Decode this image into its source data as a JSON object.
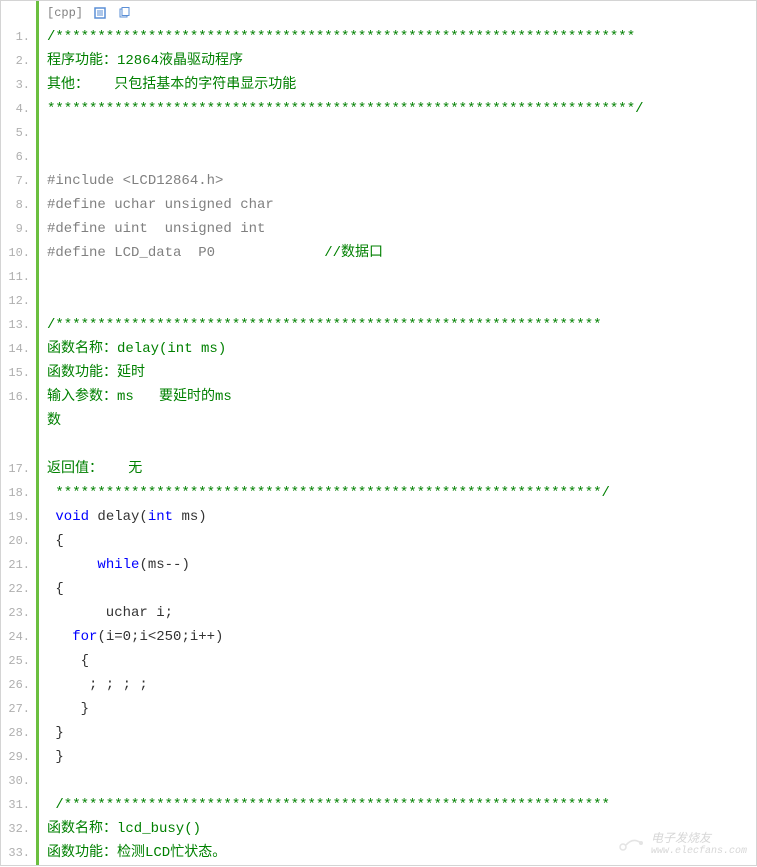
{
  "header": {
    "lang": "[cpp]"
  },
  "gutter": {
    "start": 1,
    "end": 33
  },
  "lines": [
    {
      "n": 1,
      "segs": [
        {
          "cls": "comment",
          "t": "/*********************************************************************"
        }
      ]
    },
    {
      "n": 2,
      "segs": [
        {
          "cls": "comment",
          "t": "程序功能：12864液晶驱动程序"
        }
      ]
    },
    {
      "n": 3,
      "segs": [
        {
          "cls": "comment",
          "t": "其他：   只包括基本的字符串显示功能"
        }
      ]
    },
    {
      "n": 4,
      "segs": [
        {
          "cls": "comment",
          "t": "**********************************************************************/"
        }
      ]
    },
    {
      "n": 5,
      "segs": [
        {
          "cls": "",
          "t": " "
        }
      ]
    },
    {
      "n": 6,
      "segs": [
        {
          "cls": "",
          "t": " "
        }
      ]
    },
    {
      "n": 7,
      "segs": [
        {
          "cls": "preprocessor",
          "t": "#include <LCD12864.h>"
        }
      ]
    },
    {
      "n": 8,
      "segs": [
        {
          "cls": "preprocessor",
          "t": "#define uchar unsigned char"
        }
      ]
    },
    {
      "n": 9,
      "segs": [
        {
          "cls": "preprocessor",
          "t": "#define uint  unsigned int"
        }
      ]
    },
    {
      "n": 10,
      "segs": [
        {
          "cls": "preprocessor",
          "t": "#define LCD_data  P0             "
        },
        {
          "cls": "comment",
          "t": "//数据口"
        }
      ]
    },
    {
      "n": 11,
      "segs": [
        {
          "cls": "",
          "t": " "
        }
      ]
    },
    {
      "n": 12,
      "segs": [
        {
          "cls": "",
          "t": " "
        }
      ]
    },
    {
      "n": 13,
      "segs": [
        {
          "cls": "comment",
          "t": "/*****************************************************************"
        }
      ]
    },
    {
      "n": 14,
      "segs": [
        {
          "cls": "comment",
          "t": "函数名称：delay(int ms)"
        }
      ]
    },
    {
      "n": 15,
      "segs": [
        {
          "cls": "comment",
          "t": "函数功能：延时"
        }
      ]
    },
    {
      "n": 16,
      "segs": [
        {
          "cls": "comment",
          "t": "输入参数：ms   要延时的ms\n数"
        }
      ],
      "wrapped": true,
      "extraHeight": 48
    },
    {
      "n": "16b",
      "segs": [
        {
          "cls": "",
          "t": " "
        }
      ]
    },
    {
      "n": 17,
      "segs": [
        {
          "cls": "comment",
          "t": "返回值：   无"
        }
      ]
    },
    {
      "n": 18,
      "segs": [
        {
          "cls": "comment",
          "t": " *****************************************************************/"
        }
      ]
    },
    {
      "n": 19,
      "segs": [
        {
          "cls": "",
          "t": " "
        },
        {
          "cls": "keyword",
          "t": "void"
        },
        {
          "cls": "",
          "t": " delay("
        },
        {
          "cls": "keyword",
          "t": "int"
        },
        {
          "cls": "",
          "t": " ms)"
        }
      ]
    },
    {
      "n": 20,
      "segs": [
        {
          "cls": "",
          "t": " {"
        }
      ]
    },
    {
      "n": 21,
      "segs": [
        {
          "cls": "",
          "t": "      "
        },
        {
          "cls": "keyword",
          "t": "while"
        },
        {
          "cls": "",
          "t": "(ms--)"
        }
      ]
    },
    {
      "n": 22,
      "segs": [
        {
          "cls": "",
          "t": " {"
        }
      ]
    },
    {
      "n": 23,
      "segs": [
        {
          "cls": "",
          "t": "       uchar i;"
        }
      ]
    },
    {
      "n": 24,
      "segs": [
        {
          "cls": "",
          "t": "   "
        },
        {
          "cls": "keyword",
          "t": "for"
        },
        {
          "cls": "",
          "t": "(i=0;i<250;i++)"
        }
      ]
    },
    {
      "n": 25,
      "segs": [
        {
          "cls": "",
          "t": "    {"
        }
      ]
    },
    {
      "n": 26,
      "segs": [
        {
          "cls": "",
          "t": "     ; ; ; ;"
        }
      ]
    },
    {
      "n": 27,
      "segs": [
        {
          "cls": "",
          "t": "    }"
        }
      ]
    },
    {
      "n": 28,
      "segs": [
        {
          "cls": "",
          "t": " }"
        }
      ]
    },
    {
      "n": 29,
      "segs": [
        {
          "cls": "",
          "t": " }"
        }
      ]
    },
    {
      "n": 30,
      "segs": [
        {
          "cls": "",
          "t": " "
        }
      ]
    },
    {
      "n": 31,
      "segs": [
        {
          "cls": "comment",
          "t": " /*****************************************************************"
        }
      ]
    },
    {
      "n": 32,
      "segs": [
        {
          "cls": "comment",
          "t": "函数名称：lcd_busy()"
        }
      ]
    },
    {
      "n": 33,
      "segs": [
        {
          "cls": "comment",
          "t": "函数功能：检测LCD忙状态。"
        }
      ]
    }
  ],
  "colors": {
    "comment": "#008000",
    "preprocessor": "#808080",
    "keyword": "#0000ff",
    "gutter_text": "#afafaf",
    "gutter_border": "#6bbf3f",
    "background": "#ffffff"
  },
  "watermark": {
    "text": "电子发烧友",
    "url": "www.elecfans.com"
  }
}
